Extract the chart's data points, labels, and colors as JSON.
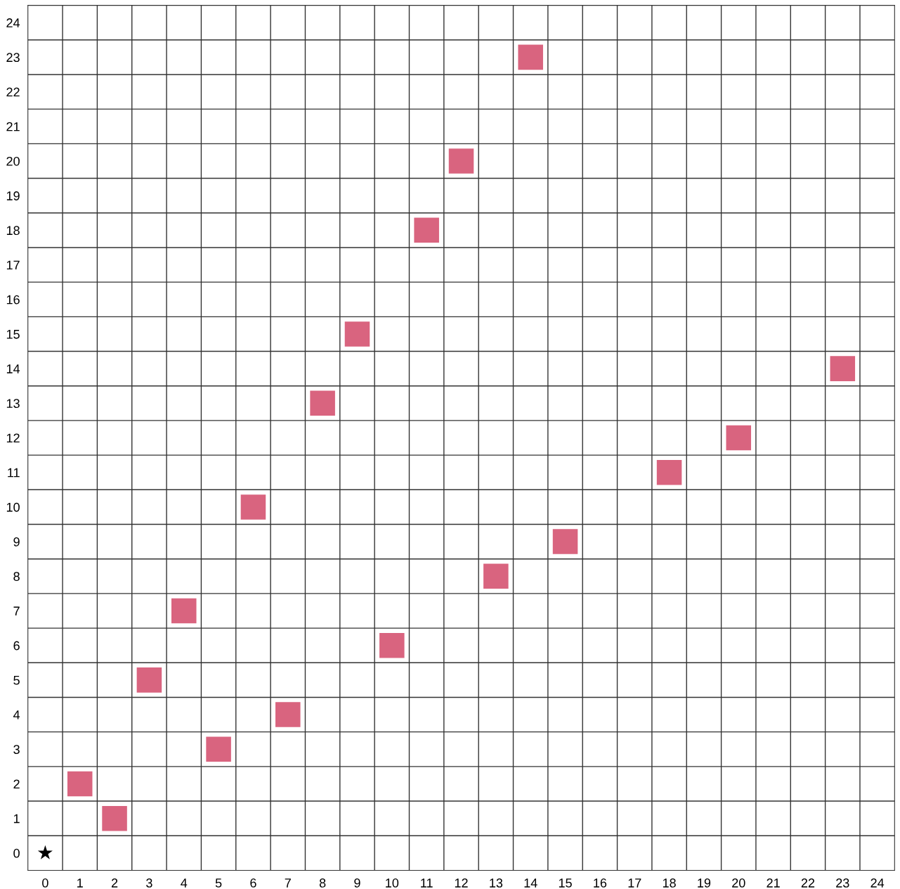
{
  "chart_data": {
    "type": "scatter",
    "series": [
      {
        "color": "#d9647f",
        "marker": "square",
        "x": [
          1,
          2,
          3,
          4,
          5,
          6,
          7,
          8,
          9,
          10,
          11,
          12,
          13,
          14,
          15,
          18,
          20,
          23
        ],
        "values": [
          2,
          1,
          5,
          7,
          3,
          10,
          4,
          13,
          15,
          6,
          18,
          20,
          8,
          23,
          9,
          11,
          12,
          14
        ]
      },
      {
        "color": "#000000",
        "marker": "star",
        "x": [
          0
        ],
        "values": [
          0
        ]
      }
    ],
    "xlim": [
      -0.5,
      24.5
    ],
    "ylim": [
      -0.5,
      24.5
    ],
    "xticks": [
      0,
      1,
      2,
      3,
      4,
      5,
      6,
      7,
      8,
      9,
      10,
      11,
      12,
      13,
      14,
      15,
      16,
      17,
      18,
      19,
      20,
      21,
      22,
      23,
      24
    ],
    "yticks": [
      0,
      1,
      2,
      3,
      4,
      5,
      6,
      7,
      8,
      9,
      10,
      11,
      12,
      13,
      14,
      15,
      16,
      17,
      18,
      19,
      20,
      21,
      22,
      23,
      24
    ],
    "grid": true
  }
}
